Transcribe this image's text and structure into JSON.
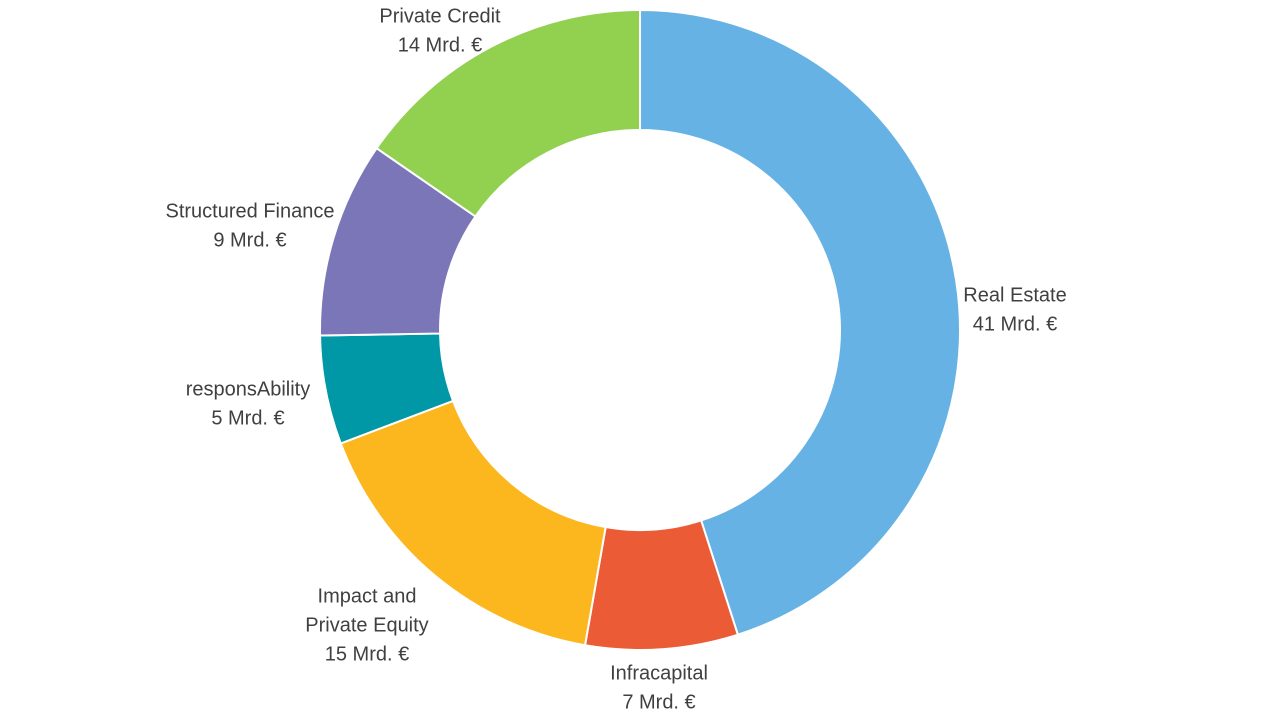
{
  "chart_data": {
    "type": "pie",
    "variant": "donut",
    "title": "",
    "unit": "Mrd. €",
    "start": "top, clockwise",
    "slices": [
      {
        "name": "Real Estate",
        "value": 41,
        "label_lines": [
          "Real Estate",
          "41 Mrd. €"
        ],
        "color": "#67B2E4"
      },
      {
        "name": "Infracapital",
        "value": 7,
        "label_lines": [
          "Infracapital",
          "7 Mrd. €"
        ],
        "color": "#EB5B36"
      },
      {
        "name": "Impact and Private Equity",
        "value": 15,
        "label_lines": [
          "Impact and",
          "Private Equity",
          "15 Mrd. €"
        ],
        "color": "#FCB71E"
      },
      {
        "name": "responsAbility",
        "value": 5,
        "label_lines": [
          "responsAbility",
          "5 Mrd. €"
        ],
        "color": "#0097A7"
      },
      {
        "name": "Structured Finance",
        "value": 9,
        "label_lines": [
          "Structured Finance",
          "9 Mrd. €"
        ],
        "color": "#7B76B7"
      },
      {
        "name": "Private Credit",
        "value": 14,
        "label_lines": [
          "Private Credit",
          "14 Mrd. €"
        ],
        "color": "#92D050"
      }
    ]
  }
}
